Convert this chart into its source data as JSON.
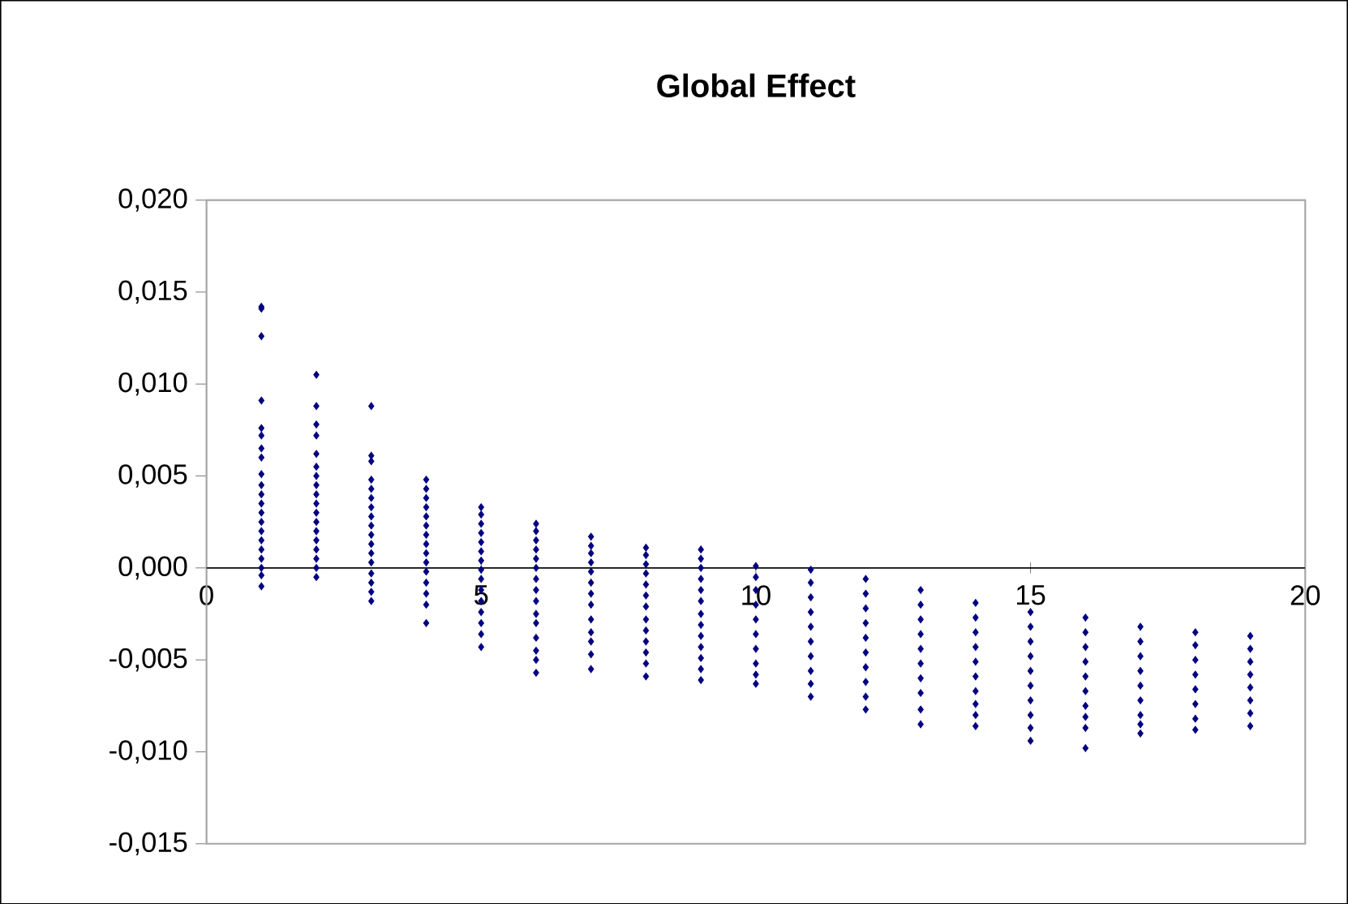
{
  "chart_data": {
    "type": "scatter",
    "title": "Global Effect",
    "xlim": [
      0,
      20
    ],
    "xticks": [
      0,
      5,
      10,
      15,
      20
    ],
    "ylim": [
      -0.015,
      0.02
    ],
    "yticks": [
      {
        "value": -0.015,
        "label": "-0,015"
      },
      {
        "value": -0.01,
        "label": "-0,010"
      },
      {
        "value": -0.005,
        "label": "-0,005"
      },
      {
        "value": 0,
        "label": "0,000"
      },
      {
        "value": 0.005,
        "label": "0,005"
      },
      {
        "value": 0.01,
        "label": "0,010"
      },
      {
        "value": 0.015,
        "label": "0,015"
      },
      {
        "value": 0.02,
        "label": "0,020"
      }
    ],
    "grid": false,
    "marker": "diamond",
    "series": [
      {
        "color": "#000080",
        "x": [
          1,
          1,
          1,
          1,
          1,
          1,
          1,
          1,
          1,
          1,
          1,
          1,
          1,
          1,
          1,
          1,
          1,
          1,
          1,
          1,
          1,
          2,
          2,
          2,
          2,
          2,
          2,
          2,
          2,
          2,
          2,
          2,
          2,
          2,
          2,
          2,
          2,
          2,
          2,
          3,
          3,
          3,
          3,
          3,
          3,
          3,
          3,
          3,
          3,
          3,
          3,
          3,
          3,
          3,
          3,
          3,
          4,
          4,
          4,
          4,
          4,
          4,
          4,
          4,
          4,
          4,
          4,
          4,
          4,
          4,
          4,
          5,
          5,
          5,
          5,
          5,
          5,
          5,
          5,
          5,
          5,
          5,
          5,
          5,
          5,
          5,
          6,
          6,
          6,
          6,
          6,
          6,
          6,
          6,
          6,
          6,
          6,
          6,
          6,
          6,
          6,
          7,
          7,
          7,
          7,
          7,
          7,
          7,
          7,
          7,
          7,
          7,
          7,
          7,
          8,
          8,
          8,
          8,
          8,
          8,
          8,
          8,
          8,
          8,
          8,
          8,
          8,
          9,
          9,
          9,
          9,
          9,
          9,
          9,
          9,
          9,
          9,
          9,
          9,
          9,
          10,
          10,
          10,
          10,
          10,
          10,
          10,
          10,
          10,
          10,
          11,
          11,
          11,
          11,
          11,
          11,
          11,
          11,
          11,
          11,
          12,
          12,
          12,
          12,
          12,
          12,
          12,
          12,
          12,
          12,
          13,
          13,
          13,
          13,
          13,
          13,
          13,
          13,
          13,
          13,
          14,
          14,
          14,
          14,
          14,
          14,
          14,
          14,
          14,
          14,
          15,
          15,
          15,
          15,
          15,
          15,
          15,
          15,
          15,
          15,
          16,
          16,
          16,
          16,
          16,
          16,
          16,
          16,
          16,
          16,
          17,
          17,
          17,
          17,
          17,
          17,
          17,
          17,
          17,
          18,
          18,
          18,
          18,
          18,
          18,
          18,
          18,
          19,
          19,
          19,
          19,
          19,
          19,
          19,
          19
        ],
        "values": [
          0.0142,
          0.0141,
          0.0126,
          0.0091,
          0.0076,
          0.0072,
          0.0065,
          0.006,
          0.0051,
          0.0045,
          0.004,
          0.0035,
          0.003,
          0.0025,
          0.002,
          0.0015,
          0.001,
          0.0005,
          0.0,
          -0.0004,
          -0.001,
          0.0105,
          0.0088,
          0.0078,
          0.0072,
          0.0062,
          0.0055,
          0.005,
          0.0045,
          0.004,
          0.0035,
          0.003,
          0.0025,
          0.002,
          0.0015,
          0.001,
          0.0005,
          0.0,
          -0.0005,
          0.0088,
          0.0061,
          0.0058,
          0.0048,
          0.0043,
          0.0038,
          0.0033,
          0.0028,
          0.0023,
          0.0018,
          0.0013,
          0.0008,
          0.0003,
          -0.0003,
          -0.0008,
          -0.0013,
          -0.0018,
          0.0048,
          0.0043,
          0.0038,
          0.0033,
          0.0028,
          0.0023,
          0.0018,
          0.0013,
          0.0008,
          0.0003,
          -0.0002,
          -0.0008,
          -0.0014,
          -0.002,
          -0.003,
          0.0033,
          0.0029,
          0.0024,
          0.0019,
          0.0014,
          0.0009,
          0.0004,
          -0.0001,
          -0.0006,
          -0.0012,
          -0.0018,
          -0.0024,
          -0.003,
          -0.0036,
          -0.0043,
          0.0024,
          0.002,
          0.0015,
          0.001,
          0.0005,
          0.0,
          -0.0006,
          -0.0012,
          -0.0018,
          -0.0025,
          -0.003,
          -0.0038,
          -0.0045,
          -0.005,
          -0.0057,
          0.0017,
          0.0012,
          0.0008,
          0.0003,
          -0.0002,
          -0.0008,
          -0.0014,
          -0.002,
          -0.0028,
          -0.0035,
          -0.004,
          -0.0047,
          -0.0055,
          0.0011,
          0.0007,
          0.0002,
          -0.0003,
          -0.0009,
          -0.0015,
          -0.0021,
          -0.0028,
          -0.0034,
          -0.004,
          -0.0046,
          -0.0052,
          -0.0059,
          0.001,
          0.0005,
          0.0,
          -0.0006,
          -0.0012,
          -0.0018,
          -0.0025,
          -0.0031,
          -0.0037,
          -0.0043,
          -0.0049,
          -0.0055,
          -0.0061,
          0.0001,
          -0.0005,
          -0.0012,
          -0.002,
          -0.0028,
          -0.0036,
          -0.0044,
          -0.0052,
          -0.0058,
          -0.0063,
          -0.0001,
          -0.0008,
          -0.0016,
          -0.0024,
          -0.0032,
          -0.004,
          -0.0048,
          -0.0056,
          -0.0063,
          -0.007,
          -0.0006,
          -0.0014,
          -0.0022,
          -0.003,
          -0.0038,
          -0.0046,
          -0.0054,
          -0.0062,
          -0.007,
          -0.0077,
          -0.0012,
          -0.002,
          -0.0028,
          -0.0036,
          -0.0044,
          -0.0052,
          -0.006,
          -0.0068,
          -0.0077,
          -0.0085,
          -0.0019,
          -0.0027,
          -0.0035,
          -0.0043,
          -0.0051,
          -0.0059,
          -0.0067,
          -0.0074,
          -0.008,
          -0.0086,
          -0.0024,
          -0.0032,
          -0.004,
          -0.0048,
          -0.0056,
          -0.0064,
          -0.0072,
          -0.008,
          -0.0087,
          -0.0094,
          -0.0027,
          -0.0035,
          -0.0043,
          -0.0051,
          -0.0059,
          -0.0067,
          -0.0075,
          -0.0081,
          -0.0087,
          -0.0098,
          -0.0032,
          -0.004,
          -0.0048,
          -0.0056,
          -0.0064,
          -0.0072,
          -0.008,
          -0.0085,
          -0.009,
          -0.0035,
          -0.0042,
          -0.005,
          -0.0058,
          -0.0066,
          -0.0074,
          -0.0082,
          -0.0088,
          -0.0037,
          -0.0044,
          -0.0051,
          -0.0058,
          -0.0065,
          -0.0072,
          -0.0079,
          -0.0086
        ]
      }
    ]
  }
}
